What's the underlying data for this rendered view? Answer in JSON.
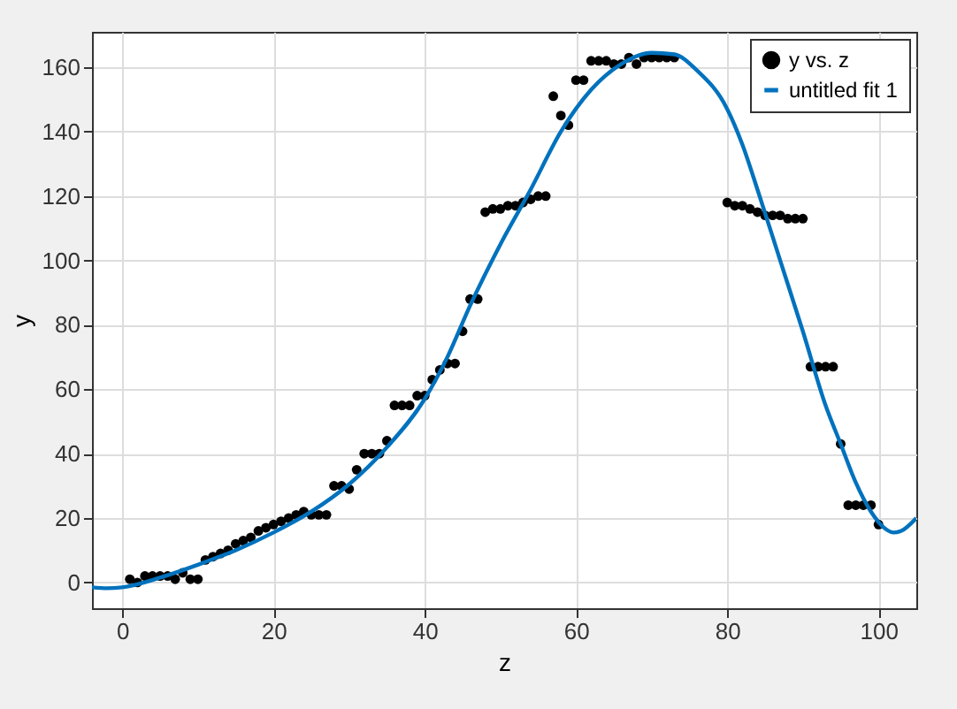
{
  "chart_data": {
    "type": "scatter",
    "xlabel": "z",
    "ylabel": "y",
    "xlim": [
      -4,
      105
    ],
    "ylim": [
      -8,
      171
    ],
    "xticks": [
      0,
      20,
      40,
      60,
      80,
      100
    ],
    "yticks": [
      0,
      20,
      40,
      60,
      80,
      100,
      120,
      140,
      160
    ],
    "grid": true,
    "legend": "top right",
    "series": [
      {
        "name": "y vs. z",
        "marker": "circle",
        "color": "#000000",
        "x": [
          1,
          2,
          3,
          4,
          5,
          6,
          7,
          8,
          9,
          10,
          11,
          12,
          13,
          14,
          15,
          16,
          17,
          18,
          19,
          20,
          21,
          22,
          23,
          24,
          25,
          26,
          27,
          28,
          29,
          30,
          31,
          32,
          33,
          34,
          35,
          36,
          37,
          38,
          39,
          40,
          41,
          42,
          43,
          44,
          45,
          46,
          47,
          48,
          49,
          50,
          51,
          52,
          53,
          54,
          55,
          56,
          57,
          58,
          59,
          60,
          61,
          62,
          63,
          64,
          65,
          66,
          67,
          68,
          69,
          70,
          71,
          72,
          73,
          80,
          81,
          82,
          83,
          84,
          85,
          86,
          87,
          88,
          89,
          90,
          91,
          92,
          93,
          94,
          95,
          96,
          97,
          98,
          99,
          100
        ],
        "values": [
          1,
          0,
          2,
          2,
          2,
          2,
          1,
          3,
          1,
          1,
          7,
          8,
          9,
          10,
          12,
          13,
          14,
          16,
          17,
          18,
          19,
          20,
          21,
          22,
          21,
          21,
          21,
          30,
          30,
          29,
          35,
          40,
          40,
          40,
          44,
          55,
          55,
          55,
          58,
          58,
          63,
          66,
          68,
          68,
          78,
          88,
          88,
          115,
          116,
          116,
          117,
          117,
          118,
          119,
          120,
          120,
          151,
          145,
          142,
          156,
          156,
          162,
          162,
          162,
          161,
          161,
          163,
          161,
          163,
          163,
          163,
          163,
          163,
          118,
          117,
          117,
          116,
          115,
          114,
          114,
          114,
          113,
          113,
          113,
          67,
          67,
          67,
          67,
          43,
          24,
          24,
          24,
          24,
          18
        ]
      },
      {
        "name": "untitled fit 1",
        "type": "line",
        "marker": "none",
        "color": "#0072bd",
        "x": [
          -4,
          -2,
          0,
          5,
          10,
          15,
          20,
          25,
          30,
          35,
          40,
          43,
          46,
          50,
          54,
          58,
          62,
          66,
          70,
          73,
          76,
          80,
          82,
          84,
          87,
          90,
          93,
          95,
          97,
          99,
          101,
          102,
          103,
          105
        ],
        "values": [
          -1.5,
          -1.8,
          -1.5,
          1.5,
          5.5,
          10,
          15.5,
          22,
          30.5,
          42,
          57,
          70,
          86,
          105,
          122,
          140,
          153,
          161,
          164.5,
          164,
          159,
          147,
          136,
          122,
          100,
          78,
          55,
          43,
          31,
          22,
          16.5,
          15.5,
          16,
          20
        ]
      }
    ]
  }
}
